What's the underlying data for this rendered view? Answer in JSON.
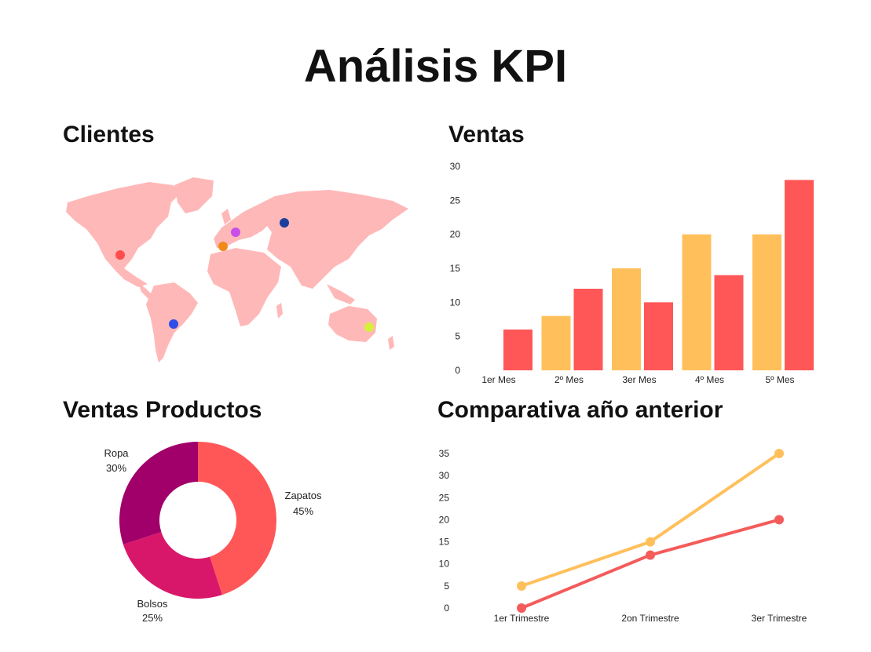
{
  "title": "Análisis KPI",
  "sections": {
    "clientes": "Clientes",
    "ventas": "Ventas",
    "productos": "Ventas Productos",
    "comparativa": "Comparativa año anterior"
  },
  "colors": {
    "map_land": "#ffb8b8",
    "bar_yellow": "#ffc05c",
    "bar_red": "#ff5757",
    "donut_zapatos": "#ff5757",
    "donut_bolsos": "#d9176a",
    "donut_ropa": "#a1006a",
    "line_yellow": "#ffc05c",
    "line_red": "#f45b5b"
  },
  "map_markers": [
    {
      "name": "north-america-marker",
      "color": "#ff4d4d"
    },
    {
      "name": "south-america-marker",
      "color": "#2f4de8"
    },
    {
      "name": "iberia-marker",
      "color": "#f08a17"
    },
    {
      "name": "europe-marker",
      "color": "#c94ee8"
    },
    {
      "name": "russia-marker",
      "color": "#1c3f9c"
    },
    {
      "name": "australia-marker",
      "color": "#d6ef38"
    }
  ],
  "chart_data": [
    {
      "type": "bar",
      "categories": [
        "1er Mes",
        "2º Mes",
        "3er Mes",
        "4º Mes",
        "5º Mes"
      ],
      "series": [
        {
          "values": [
            0,
            8,
            15,
            20,
            20
          ],
          "color": "#ffc05c"
        },
        {
          "values": [
            6,
            12,
            10,
            14,
            28
          ],
          "color": "#ff5757"
        }
      ],
      "ylim": [
        0,
        30
      ],
      "yticks": [
        0,
        5,
        10,
        15,
        20,
        25,
        30
      ],
      "grid": false
    },
    {
      "type": "pie",
      "donut": true,
      "slices": [
        {
          "label": "Zapatos",
          "pct_label": "45%",
          "value": 45
        },
        {
          "label": "Bolsos",
          "pct_label": "25%",
          "value": 25
        },
        {
          "label": "Ropa",
          "pct_label": "30%",
          "value": 30
        }
      ]
    },
    {
      "type": "line",
      "categories": [
        "1er Trimestre",
        "2on Trimestre",
        "3er Trimestre"
      ],
      "series": [
        {
          "values": [
            5,
            15,
            35
          ],
          "color": "#ffc05c"
        },
        {
          "values": [
            0,
            12,
            20
          ],
          "color": "#f45b5b"
        }
      ],
      "ylim": [
        0,
        35
      ],
      "yticks": [
        0,
        5,
        10,
        15,
        20,
        25,
        30,
        35
      ],
      "grid": false
    }
  ]
}
